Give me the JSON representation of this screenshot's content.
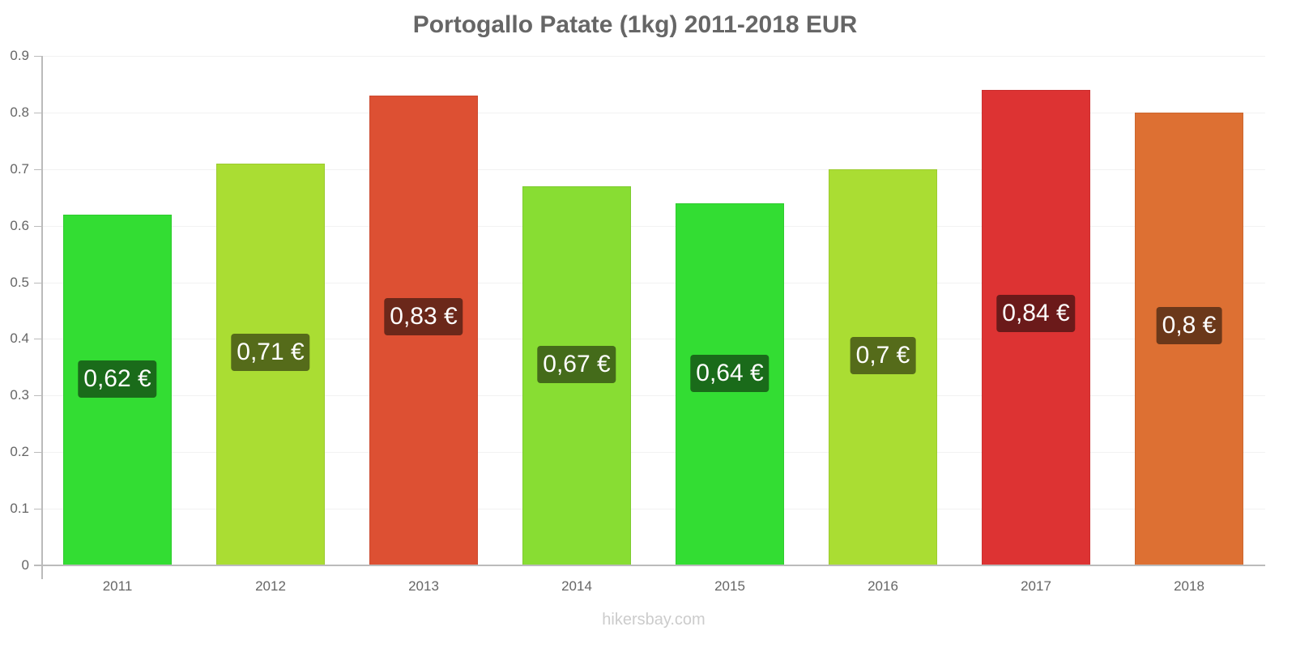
{
  "chart_data": {
    "type": "bar",
    "title": "Portogallo Patate (1kg) 2011-2018 EUR",
    "xlabel": "",
    "ylabel": "",
    "ylim": [
      0,
      0.9
    ],
    "yticks": [
      "0",
      "0.1",
      "0.2",
      "0.3",
      "0.4",
      "0.5",
      "0.6",
      "0.7",
      "0.8",
      "0.9"
    ],
    "grid": true,
    "legend": null,
    "categories": [
      "2011",
      "2012",
      "2013",
      "2014",
      "2015",
      "2016",
      "2017",
      "2018"
    ],
    "values": [
      0.62,
      0.71,
      0.83,
      0.67,
      0.64,
      0.7,
      0.84,
      0.8
    ],
    "data_labels": [
      "0,62 €",
      "0,71 €",
      "0,83 €",
      "0,67 €",
      "0,64 €",
      "0,7 €",
      "0,84 €",
      "0,8 €"
    ],
    "bar_colors": [
      "#33dd33",
      "#aadd33",
      "#dd5033",
      "#88dd33",
      "#33dd33",
      "#aadd33",
      "#dd3333",
      "#dd7033"
    ],
    "label_colors": [
      "#1a6b1a",
      "#556b1a",
      "#6b281a",
      "#446b1a",
      "#1a6b1a",
      "#556b1a",
      "#6b1a1a",
      "#6b381a"
    ]
  },
  "footer": {
    "credit": "hikersbay.com"
  }
}
